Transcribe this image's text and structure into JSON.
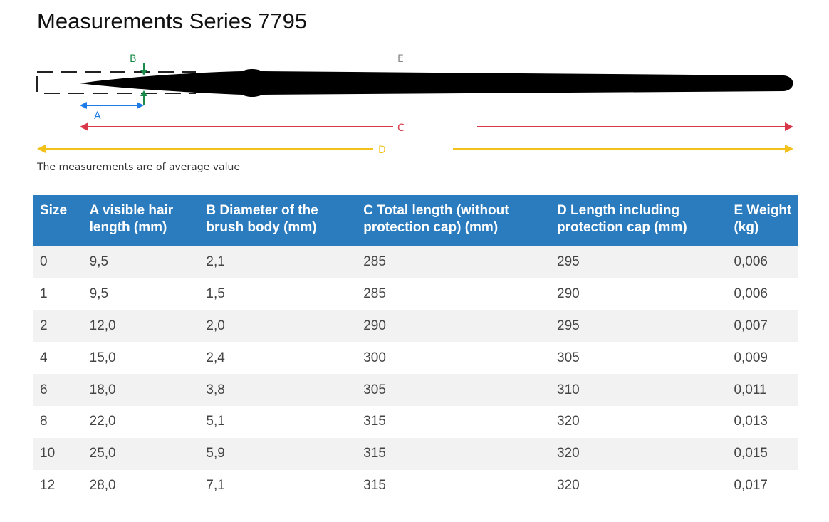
{
  "title": "Measurements Series 7795",
  "diagram": {
    "labels": {
      "a": "A",
      "b": "B",
      "c": "C",
      "d": "D",
      "e": "E"
    },
    "colors": {
      "a": "#1e7be6",
      "b": "#1a8a4a",
      "c": "#d9384a",
      "d": "#f2c21a",
      "e": "#888888",
      "brush": "#000000",
      "cap": "#222222"
    }
  },
  "note": "The measurements are of average value",
  "table": {
    "headers": [
      "Size",
      "A visible hair length (mm)",
      "B Diameter of the brush body (mm)",
      "C Total length (without protection cap) (mm)",
      "D Length including protection cap (mm)",
      "E Weight (kg)"
    ],
    "rows": [
      [
        "0",
        "9,5",
        "2,1",
        "285",
        "295",
        "0,006"
      ],
      [
        "1",
        "9,5",
        "1,5",
        "285",
        "290",
        "0,006"
      ],
      [
        "2",
        "12,0",
        "2,0",
        "290",
        "295",
        "0,007"
      ],
      [
        "4",
        "15,0",
        "2,4",
        "300",
        "305",
        "0,009"
      ],
      [
        "6",
        "18,0",
        "3,8",
        "305",
        "310",
        "0,011"
      ],
      [
        "8",
        "22,0",
        "5,1",
        "315",
        "320",
        "0,013"
      ],
      [
        "10",
        "25,0",
        "5,9",
        "315",
        "320",
        "0,015"
      ],
      [
        "12",
        "28,0",
        "7,1",
        "315",
        "320",
        "0,017"
      ]
    ]
  }
}
